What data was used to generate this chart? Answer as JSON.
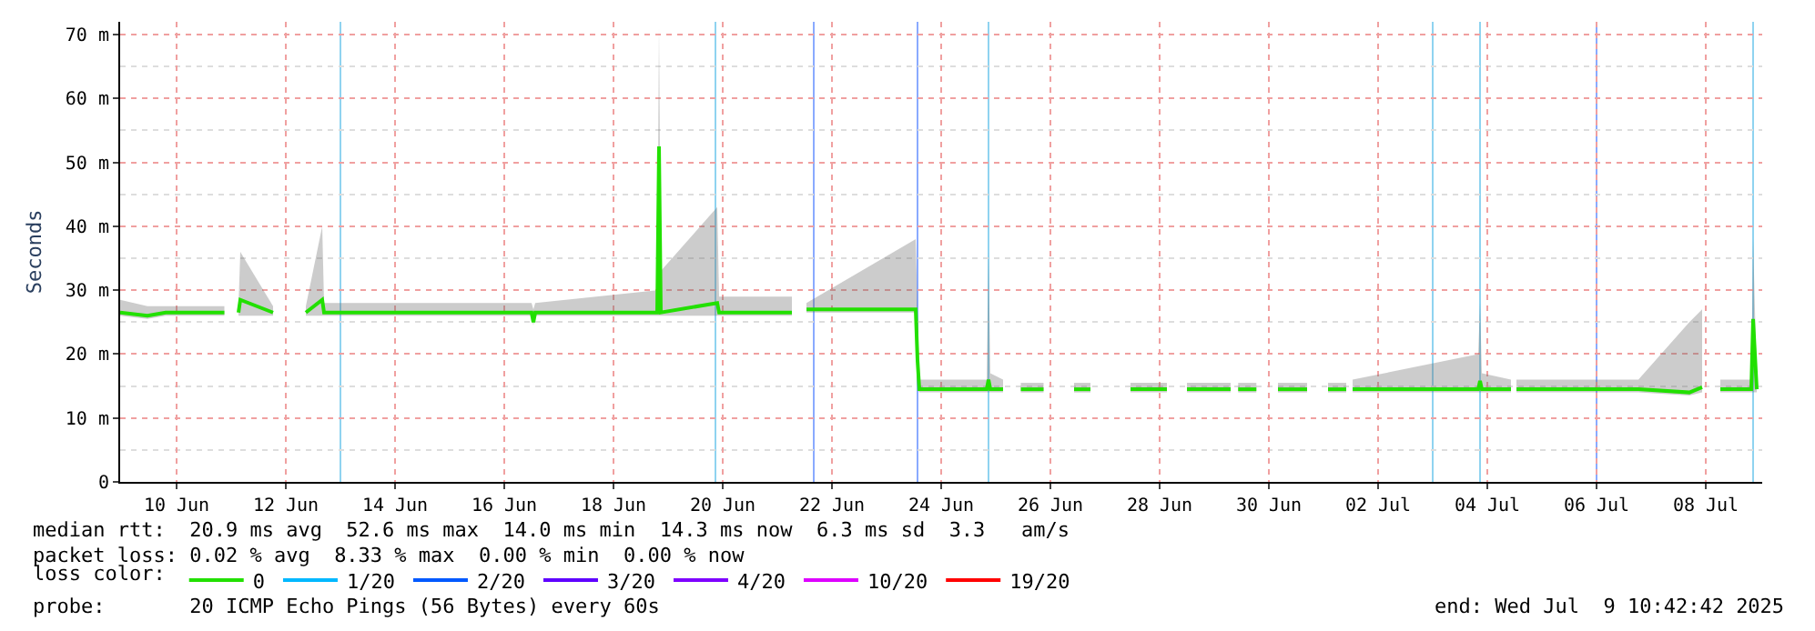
{
  "chart_data": {
    "type": "line",
    "ylabel": "Seconds",
    "legend_title": "loss color:",
    "legend": "bottom",
    "grid": true,
    "marker": "none",
    "line_style": "solid",
    "xlim": [
      "2025-06-09T11:12",
      "2025-07-09T12:48"
    ],
    "xticks": [
      {
        "value": "2025-06-10T12:00",
        "label": "10 Jun"
      },
      {
        "value": "2025-06-12T12:00",
        "label": "12 Jun"
      },
      {
        "value": "2025-06-14T12:00",
        "label": "14 Jun"
      },
      {
        "value": "2025-06-16T12:00",
        "label": "16 Jun"
      },
      {
        "value": "2025-06-18T12:00",
        "label": "18 Jun"
      },
      {
        "value": "2025-06-20T12:00",
        "label": "20 Jun"
      },
      {
        "value": "2025-06-22T12:00",
        "label": "22 Jun"
      },
      {
        "value": "2025-06-24T12:00",
        "label": "24 Jun"
      },
      {
        "value": "2025-06-26T12:00",
        "label": "26 Jun"
      },
      {
        "value": "2025-06-28T12:00",
        "label": "28 Jun"
      },
      {
        "value": "2025-06-30T12:00",
        "label": "30 Jun"
      },
      {
        "value": "2025-07-02T12:00",
        "label": "02 Jul"
      },
      {
        "value": "2025-07-04T12:00",
        "label": "04 Jul"
      },
      {
        "value": "2025-07-06T12:00",
        "label": "06 Jul"
      },
      {
        "value": "2025-07-08T12:00",
        "label": "08 Jul"
      }
    ],
    "ylim": [
      0,
      72
    ],
    "yticks": [
      0,
      {
        "value": 10,
        "label": "10 m"
      },
      {
        "value": 20,
        "label": "20 m"
      },
      {
        "value": 30,
        "label": "30 m"
      },
      {
        "value": 40,
        "label": "40 m"
      },
      {
        "value": 50,
        "label": "50 m"
      },
      {
        "value": 60,
        "label": "60 m"
      },
      {
        "value": 70,
        "label": "70 m"
      }
    ],
    "x": [
      "2025-06-09T11:12",
      "2025-06-09T23:12",
      "2025-06-10T07:12",
      "2025-06-10T14:00",
      "2025-06-10T17:00",
      "2025-06-10T21:00",
      "2025-06-11T00:00",
      "2025-06-11T04:00",
      "2025-06-11T09:00",
      "2025-06-11T11:00",
      "2025-06-11T15:12",
      "2025-06-11T16:00",
      "2025-06-12T06:24",
      "2025-06-12T13:00",
      "2025-06-12T20:48",
      "2025-06-13T04:00",
      "2025-06-13T04:48",
      "2025-06-14T20:48",
      "2025-06-14T22:24",
      "2025-06-17T00:00",
      "2025-06-17T00:48",
      "2025-06-17T01:36",
      "2025-06-19T07:12",
      "2025-06-19T08:00",
      "2025-06-19T08:48",
      "2025-06-20T09:36",
      "2025-06-20T10:24",
      "2025-06-21T18:24",
      "2025-06-21T21:30",
      "2025-06-22T00:48",
      "2025-06-24T00:48",
      "2025-06-24T01:36",
      "2025-06-24T02:24",
      "2025-06-25T08:00",
      "2025-06-25T08:48",
      "2025-06-25T09:36",
      "2025-06-25T15:12",
      "2025-06-25T20:00",
      "2025-06-25T23:00",
      "2025-06-26T09:00",
      "2025-06-26T15:00",
      "2025-06-26T22:24",
      "2025-06-27T05:36",
      "2025-06-27T14:00",
      "2025-06-27T23:12",
      "2025-06-28T15:12",
      "2025-06-28T20:00",
      "2025-06-29T00:00",
      "2025-06-29T19:12",
      "2025-06-29T21:30",
      "2025-06-29T22:30",
      "2025-06-30T06:30",
      "2025-06-30T10:00",
      "2025-06-30T16:00",
      "2025-07-01T04:48",
      "2025-07-01T12:00",
      "2025-07-01T14:00",
      "2025-07-01T22:00",
      "2025-07-01T22:30",
      "2025-07-02T00:48",
      "2025-07-04T08:00",
      "2025-07-04T08:48",
      "2025-07-04T09:36",
      "2025-07-04T22:24",
      "2025-07-04T23:30",
      "2025-07-05T00:48",
      "2025-07-07T06:24",
      "2025-07-08T04:48",
      "2025-07-08T10:24",
      "2025-07-08T14:00",
      "2025-07-08T18:24",
      "2025-07-09T08:00",
      "2025-07-09T08:48",
      "2025-07-09T10:24"
    ],
    "series": [
      {
        "name": "0",
        "color": "#22e000",
        "values": [
          26.5,
          26,
          26.5,
          26.5,
          26.5,
          26.5,
          26.5,
          26.5,
          26.5,
          null,
          26.5,
          28.5,
          26.5,
          null,
          26.5,
          28.5,
          26.5,
          26.5,
          26.5,
          26.5,
          25,
          26.5,
          26.5,
          52.5,
          26.5,
          28,
          26.5,
          26.5,
          null,
          27,
          27,
          19,
          14.5,
          14.5,
          16,
          14.5,
          14.5,
          null,
          14.5,
          14.5,
          null,
          14.5,
          14.5,
          null,
          14.5,
          14.5,
          null,
          14.5,
          14.5,
          null,
          14.5,
          14.5,
          null,
          14.5,
          14.5,
          null,
          14.5,
          14.5,
          null,
          14.5,
          14.5,
          15.8,
          14.5,
          14.5,
          null,
          14.5,
          14.5,
          14,
          14.8,
          null,
          14.5,
          14.5,
          25.5,
          14.5
        ],
        "lower": [
          26,
          25.5,
          26,
          26,
          26,
          26,
          26,
          26,
          26,
          null,
          26,
          26,
          26,
          null,
          26,
          26,
          26,
          26,
          26,
          26,
          24.5,
          26,
          26,
          26,
          26,
          26,
          26,
          26,
          null,
          26.5,
          26.5,
          14.5,
          14,
          14,
          14,
          14,
          14,
          null,
          14,
          14,
          null,
          14,
          14,
          null,
          14,
          14,
          null,
          14,
          14,
          null,
          14,
          14,
          null,
          14,
          14,
          null,
          14,
          14,
          null,
          14,
          14,
          14,
          14,
          14,
          null,
          14,
          14,
          13.5,
          14,
          null,
          14,
          14,
          14,
          14
        ],
        "upper": [
          28.5,
          27.5,
          27.5,
          27.5,
          27.5,
          27.5,
          27.5,
          27.5,
          27.5,
          null,
          27.5,
          36,
          27.5,
          null,
          27.5,
          40,
          28,
          28,
          28,
          28,
          27,
          28,
          30,
          71,
          33,
          43,
          29,
          29,
          null,
          28,
          38,
          27,
          16,
          16,
          36,
          17,
          16,
          null,
          15.5,
          15.5,
          null,
          15.5,
          15.5,
          null,
          15.5,
          15.5,
          null,
          15.5,
          15.5,
          null,
          15.5,
          15.5,
          null,
          15.5,
          15.5,
          null,
          15.5,
          15.5,
          null,
          16,
          20,
          28,
          17,
          16,
          null,
          16,
          16,
          25,
          27,
          null,
          16,
          16,
          38,
          16
        ]
      },
      {
        "name": "1/20",
        "color": "#00b8ff",
        "values": [
          null,
          null,
          null,
          null,
          null,
          null,
          null,
          null,
          null,
          null,
          null,
          null,
          null,
          null,
          null,
          null,
          null,
          null,
          null,
          null,
          null,
          null,
          null,
          null,
          null,
          null,
          null,
          null,
          null,
          null,
          null,
          null,
          null,
          null,
          null,
          null,
          null,
          null,
          null,
          null,
          null,
          null,
          null,
          null,
          null,
          null,
          null,
          null,
          null,
          null,
          null,
          null,
          null,
          null,
          null,
          null,
          null,
          null,
          null,
          null,
          null,
          null,
          null,
          null,
          null,
          null,
          null,
          null,
          null,
          null,
          null,
          null,
          null,
          null
        ]
      },
      {
        "name": "2/20",
        "color": "#0059ff",
        "values": [
          null,
          null,
          null,
          null,
          null,
          null,
          null,
          null,
          null,
          null,
          null,
          null,
          null,
          null,
          null,
          null,
          null,
          null,
          null,
          null,
          null,
          null,
          null,
          null,
          null,
          null,
          null,
          null,
          null,
          null,
          null,
          null,
          null,
          null,
          null,
          null,
          null,
          null,
          null,
          null,
          null,
          null,
          null,
          null,
          null,
          null,
          null,
          null,
          null,
          null,
          null,
          null,
          null,
          null,
          null,
          null,
          null,
          null,
          null,
          null,
          null,
          null,
          null,
          null,
          null,
          null,
          null,
          null,
          null,
          null,
          null,
          null,
          null,
          null
        ]
      },
      {
        "name": "3/20",
        "color": "#5e00ff",
        "values": [
          null,
          null,
          null,
          null,
          null,
          null,
          null,
          null,
          null,
          null,
          null,
          null,
          null,
          null,
          null,
          null,
          null,
          null,
          null,
          null,
          null,
          null,
          null,
          null,
          null,
          null,
          null,
          null,
          null,
          null,
          null,
          null,
          null,
          null,
          null,
          null,
          null,
          null,
          null,
          null,
          null,
          null,
          null,
          null,
          null,
          null,
          null,
          null,
          null,
          null,
          null,
          null,
          null,
          null,
          null,
          null,
          null,
          null,
          null,
          null,
          null,
          null,
          null,
          null,
          null,
          null,
          null,
          null,
          null,
          null,
          null,
          null,
          null,
          null
        ]
      },
      {
        "name": "4/20",
        "color": "#7e00ff",
        "values": [
          null,
          null,
          null,
          null,
          null,
          null,
          null,
          null,
          null,
          null,
          null,
          null,
          null,
          null,
          null,
          null,
          null,
          null,
          null,
          null,
          null,
          null,
          null,
          null,
          null,
          null,
          null,
          null,
          null,
          null,
          null,
          null,
          null,
          null,
          null,
          null,
          null,
          null,
          null,
          null,
          null,
          null,
          null,
          null,
          null,
          null,
          null,
          null,
          null,
          null,
          null,
          null,
          null,
          null,
          null,
          null,
          null,
          null,
          null,
          null,
          null,
          null,
          null,
          null,
          null,
          null,
          null,
          null,
          null,
          null,
          null,
          null,
          null,
          null
        ]
      },
      {
        "name": "10/20",
        "color": "#dd00ff",
        "values": [
          null,
          null,
          null,
          null,
          null,
          null,
          null,
          null,
          null,
          null,
          null,
          null,
          null,
          null,
          null,
          null,
          null,
          null,
          null,
          null,
          null,
          null,
          null,
          null,
          null,
          null,
          null,
          null,
          null,
          null,
          null,
          null,
          null,
          null,
          null,
          null,
          null,
          null,
          null,
          null,
          null,
          null,
          null,
          null,
          null,
          null,
          null,
          null,
          null,
          null,
          null,
          null,
          null,
          null,
          null,
          null,
          null,
          null,
          null,
          null,
          null,
          null,
          null,
          null,
          null,
          null,
          null,
          null,
          null,
          null,
          null,
          null,
          null,
          null
        ]
      },
      {
        "name": "19/20",
        "color": "#ff0000",
        "values": [
          null,
          null,
          null,
          null,
          null,
          null,
          null,
          null,
          null,
          null,
          null,
          null,
          null,
          null,
          null,
          null,
          null,
          null,
          null,
          null,
          null,
          null,
          null,
          null,
          null,
          null,
          null,
          null,
          null,
          null,
          null,
          null,
          null,
          null,
          null,
          null,
          null,
          null,
          null,
          null,
          null,
          null,
          null,
          null,
          null,
          null,
          null,
          null,
          null,
          null,
          null,
          null,
          null,
          null,
          null,
          null,
          null,
          null,
          null,
          null,
          null,
          null,
          null,
          null,
          null,
          null,
          null,
          null,
          null,
          null,
          null,
          null,
          null,
          null
        ]
      }
    ],
    "ref_lines": [
      {
        "axis": "x",
        "value": "2025-06-13T12:00",
        "label": null,
        "color": "#8fd3f0"
      },
      {
        "axis": "x",
        "value": "2025-06-20T08:48",
        "label": null,
        "color": "#8fd3f0"
      },
      {
        "axis": "x",
        "value": "2025-06-22T04:00",
        "label": null,
        "color": "#8aaaff"
      },
      {
        "axis": "x",
        "value": "2025-06-24T01:36",
        "label": null,
        "color": "#8aaaff"
      },
      {
        "axis": "x",
        "value": "2025-06-25T08:48",
        "label": null,
        "color": "#8fd3f0"
      },
      {
        "axis": "x",
        "value": "2025-07-03T12:00",
        "label": null,
        "color": "#8fd3f0"
      },
      {
        "axis": "x",
        "value": "2025-07-04T08:48",
        "label": null,
        "color": "#8fd3f0"
      },
      {
        "axis": "x",
        "value": "2025-07-06T12:00",
        "label": null,
        "color": "#8aaaff"
      },
      {
        "axis": "x",
        "value": "2025-07-09T08:48",
        "label": null,
        "color": "#8fd3f0"
      }
    ],
    "annotations": [
      "median rtt:  20.9 ms avg  52.6 ms max  14.0 ms min  14.3 ms now  6.3 ms sd  3.3   am/s",
      "packet loss: 0.02 % avg  8.33 % max  0.00 % min  0.00 % now",
      "probe:       20 ICMP Echo Pings (56 Bytes) every 60s",
      "end: Wed Jul  9 10:42:42 2025"
    ]
  }
}
